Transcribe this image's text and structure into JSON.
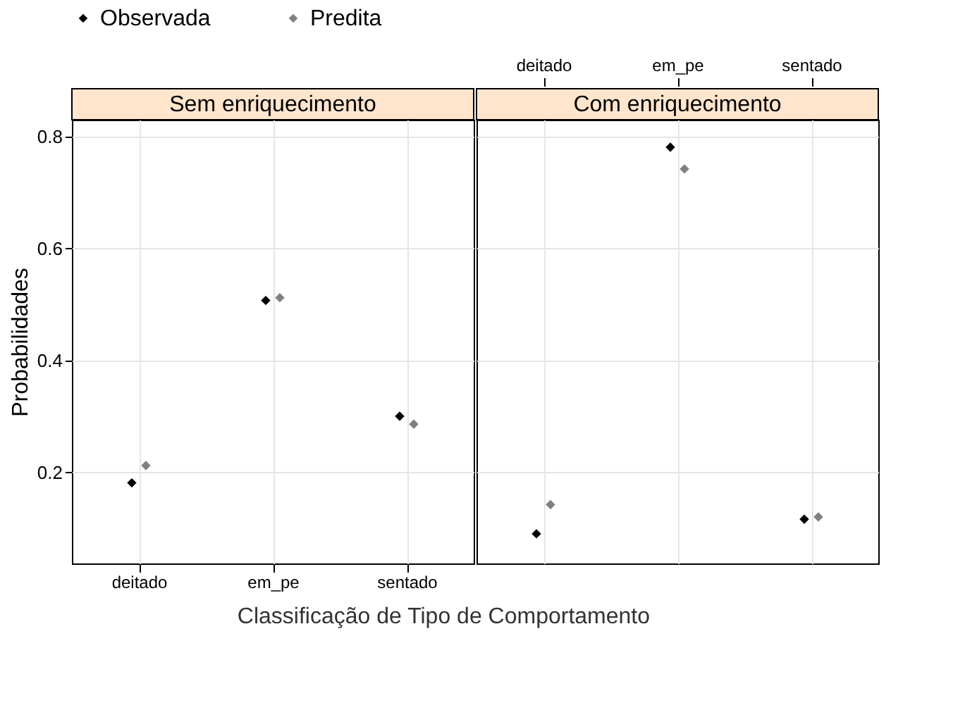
{
  "chart_data": [
    {
      "type": "scatter",
      "title": "Sem enriquecimento",
      "xlabel": "Classificação de Tipo de Comportamento",
      "ylabel": "Probabilidades",
      "categories": [
        "deitado",
        "em_pe",
        "sentado"
      ],
      "series": [
        {
          "name": "Observada",
          "color": "#000000",
          "values": [
            0.181,
            0.507,
            0.3
          ]
        },
        {
          "name": "Predita",
          "color": "#808080",
          "values": [
            0.212,
            0.512,
            0.286
          ]
        }
      ],
      "ylim": [
        0.037,
        0.83
      ],
      "yticks": [
        0.2,
        0.4,
        0.6,
        0.8
      ],
      "marker": "diamond",
      "grid": true,
      "legend": "top"
    },
    {
      "type": "scatter",
      "title": "Com enriquecimento",
      "categories": [
        "deitado",
        "em_pe",
        "sentado"
      ],
      "series": [
        {
          "name": "Observada",
          "color": "#000000",
          "values": [
            0.09,
            0.781,
            0.116
          ]
        },
        {
          "name": "Predita",
          "color": "#808080",
          "values": [
            0.142,
            0.742,
            0.12
          ]
        }
      ],
      "ylim": [
        0.037,
        0.83
      ],
      "yticks": [
        0.2,
        0.4,
        0.6,
        0.8
      ],
      "marker": "diamond",
      "grid": true,
      "tick_labels": "x"
    }
  ]
}
